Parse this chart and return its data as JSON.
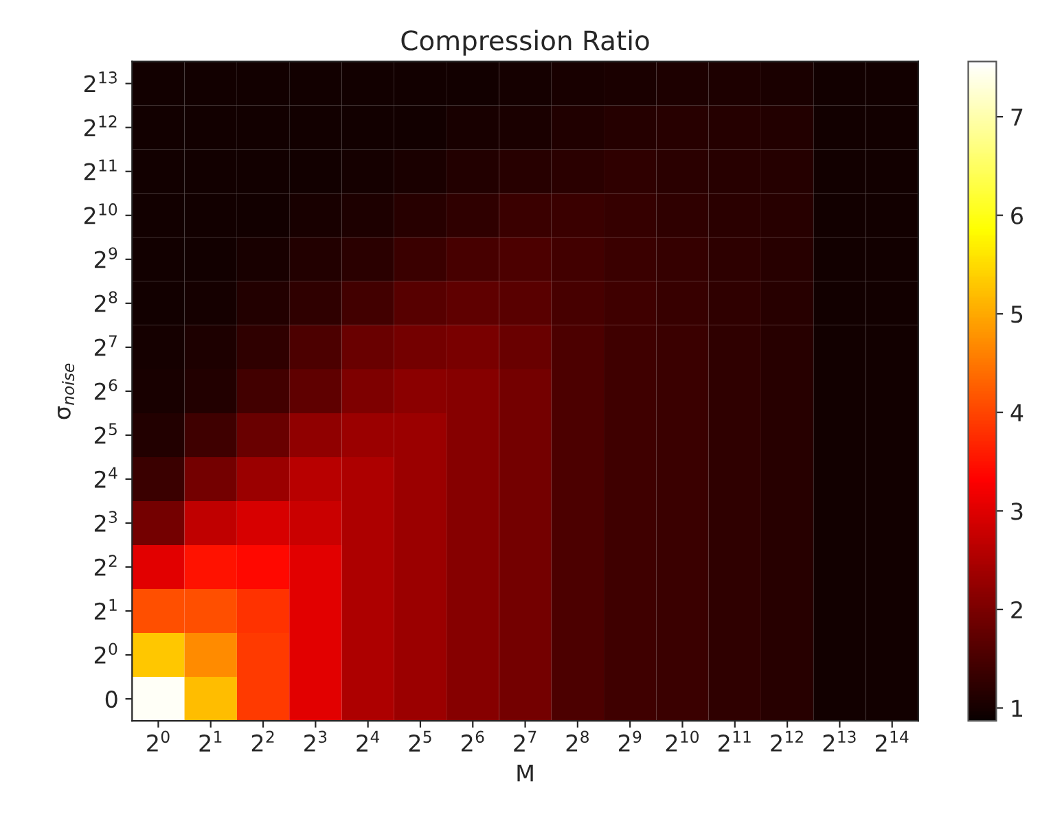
{
  "chart_data": {
    "type": "heatmap",
    "title": "Compression Ratio",
    "xlabel": "M",
    "ylabel": "σ$_{noise}$",
    "categories": [
      "2$^{0}$",
      "2$^{1}$",
      "2$^{2}$",
      "2$^{3}$",
      "2$^{4}$",
      "2$^{5}$",
      "2$^{6}$",
      "2$^{7}$",
      "2$^{8}$",
      "2$^{9}$",
      "2$^{10}$",
      "2$^{11}$",
      "2$^{12}$",
      "2$^{13}$",
      "2$^{14}$"
    ],
    "y_categories": [
      "2$^{13}$",
      "2$^{12}$",
      "2$^{11}$",
      "2$^{10}$",
      "2$^{9}$",
      "2$^{8}$",
      "2$^{7}$",
      "2$^{6}$",
      "2$^{5}$",
      "2$^{4}$",
      "2$^{3}$",
      "2$^{2}$",
      "2$^{1}$",
      "2$^{0}$",
      "0"
    ],
    "cells": [
      [
        0.97,
        0.97,
        0.97,
        0.97,
        0.97,
        0.97,
        0.97,
        0.98,
        1.01,
        1.04,
        1.06,
        1.06,
        1.04,
        0.95,
        0.95
      ],
      [
        0.97,
        0.97,
        0.97,
        0.97,
        0.97,
        0.97,
        1.01,
        1.04,
        1.08,
        1.14,
        1.16,
        1.14,
        1.11,
        0.95,
        0.95
      ],
      [
        0.97,
        0.97,
        0.97,
        0.97,
        0.98,
        1.04,
        1.11,
        1.16,
        1.2,
        1.25,
        1.2,
        1.18,
        1.14,
        0.95,
        0.95
      ],
      [
        0.97,
        0.97,
        0.97,
        1.01,
        1.06,
        1.16,
        1.25,
        1.35,
        1.35,
        1.3,
        1.25,
        1.2,
        1.16,
        0.95,
        0.95
      ],
      [
        0.97,
        0.97,
        1.01,
        1.11,
        1.2,
        1.35,
        1.49,
        1.54,
        1.44,
        1.35,
        1.3,
        1.23,
        1.16,
        0.95,
        0.95
      ],
      [
        0.97,
        0.98,
        1.11,
        1.25,
        1.44,
        1.64,
        1.73,
        1.68,
        1.49,
        1.4,
        1.33,
        1.25,
        1.16,
        0.95,
        0.95
      ],
      [
        0.98,
        1.06,
        1.25,
        1.54,
        1.83,
        1.92,
        1.97,
        1.83,
        1.54,
        1.4,
        1.35,
        1.25,
        1.16,
        0.95,
        0.95
      ],
      [
        1.01,
        1.11,
        1.44,
        1.73,
        2.02,
        2.16,
        2.12,
        1.92,
        1.54,
        1.4,
        1.35,
        1.25,
        1.16,
        0.97,
        0.95
      ],
      [
        1.11,
        1.4,
        1.83,
        2.21,
        2.31,
        2.31,
        2.12,
        1.92,
        1.54,
        1.4,
        1.35,
        1.25,
        1.16,
        0.97,
        0.95
      ],
      [
        1.35,
        1.92,
        2.31,
        2.6,
        2.5,
        2.31,
        2.12,
        1.92,
        1.54,
        1.4,
        1.35,
        1.25,
        1.16,
        0.97,
        0.95
      ],
      [
        1.92,
        2.69,
        2.93,
        2.79,
        2.5,
        2.31,
        2.12,
        1.92,
        1.54,
        1.4,
        1.35,
        1.25,
        1.16,
        0.97,
        0.95
      ],
      [
        3.03,
        3.5,
        3.4,
        3.03,
        2.5,
        2.31,
        2.12,
        1.92,
        1.54,
        1.4,
        1.35,
        1.25,
        1.16,
        0.97,
        0.95
      ],
      [
        4.1,
        4.1,
        3.8,
        3.03,
        2.5,
        2.31,
        2.12,
        1.92,
        1.54,
        1.4,
        1.35,
        1.25,
        1.16,
        0.97,
        0.95
      ],
      [
        5.3,
        4.7,
        3.9,
        3.03,
        2.5,
        2.31,
        2.12,
        1.92,
        1.54,
        1.4,
        1.35,
        1.25,
        1.16,
        0.97,
        0.95
      ],
      [
        7.5,
        5.2,
        3.9,
        3.03,
        2.5,
        2.31,
        2.12,
        1.92,
        1.54,
        1.4,
        1.35,
        1.25,
        1.16,
        0.97,
        0.95
      ]
    ],
    "clim": [
      0.87,
      7.56
    ],
    "cticks": [
      1,
      2,
      3,
      4,
      5,
      6,
      7
    ]
  }
}
